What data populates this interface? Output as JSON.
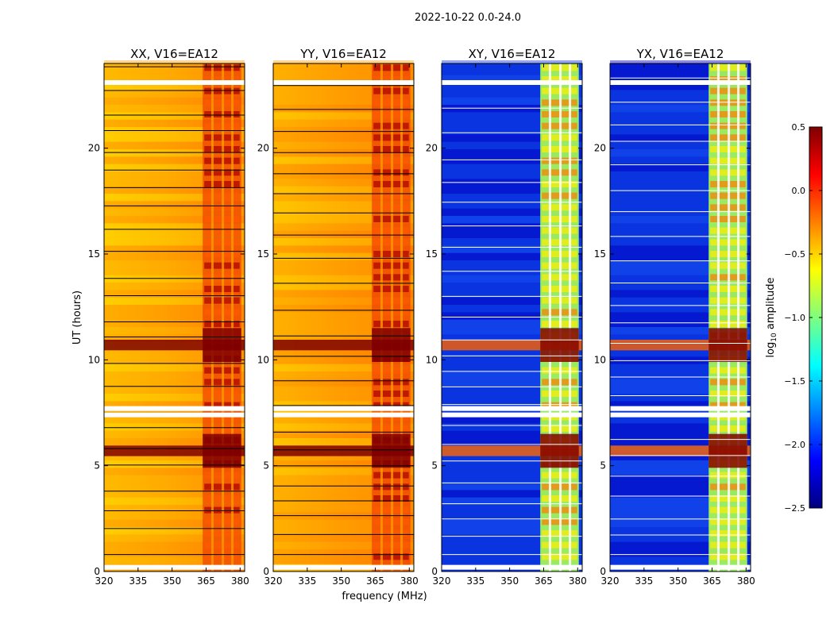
{
  "chart_data": {
    "type": "heatmap",
    "title": "2022-10-22 0.0-24.0",
    "ylabel": "UT (hours)",
    "xlabel": "frequency (MHz)",
    "xlim": [
      320,
      382
    ],
    "ylim": [
      0,
      24
    ],
    "x_ticks": [
      320,
      335,
      350,
      365,
      380
    ],
    "y_ticks": [
      0,
      5,
      10,
      15,
      20
    ],
    "panels": [
      {
        "title": "XX, V16=EA12",
        "kind": "parallel"
      },
      {
        "title": "YY, V16=EA12",
        "kind": "parallel"
      },
      {
        "title": "XY, V16=EA12",
        "kind": "cross"
      },
      {
        "title": "YX, V16=EA12",
        "kind": "cross"
      }
    ],
    "rfi_band_mhz": [
      363.5,
      380.5
    ],
    "rfi_gaps_mhz": [
      367.8,
      372.4,
      376.6
    ],
    "flagged_hours": [
      0.2,
      7.4,
      7.7,
      23.1
    ],
    "strong_hours": [
      5.7,
      10.7
    ],
    "colorbar": {
      "label": "log10 amplitude",
      "range": [
        -2.5,
        0.5
      ],
      "ticks": [
        "0.5",
        "0.0",
        "−0.5",
        "−1.0",
        "−1.5",
        "−2.0",
        "−2.5"
      ],
      "colormap": [
        "#00007f",
        "#0000ff",
        "#007fff",
        "#00ffff",
        "#7fff7f",
        "#ffff00",
        "#ff7f00",
        "#ff0000",
        "#7f0000"
      ]
    }
  }
}
